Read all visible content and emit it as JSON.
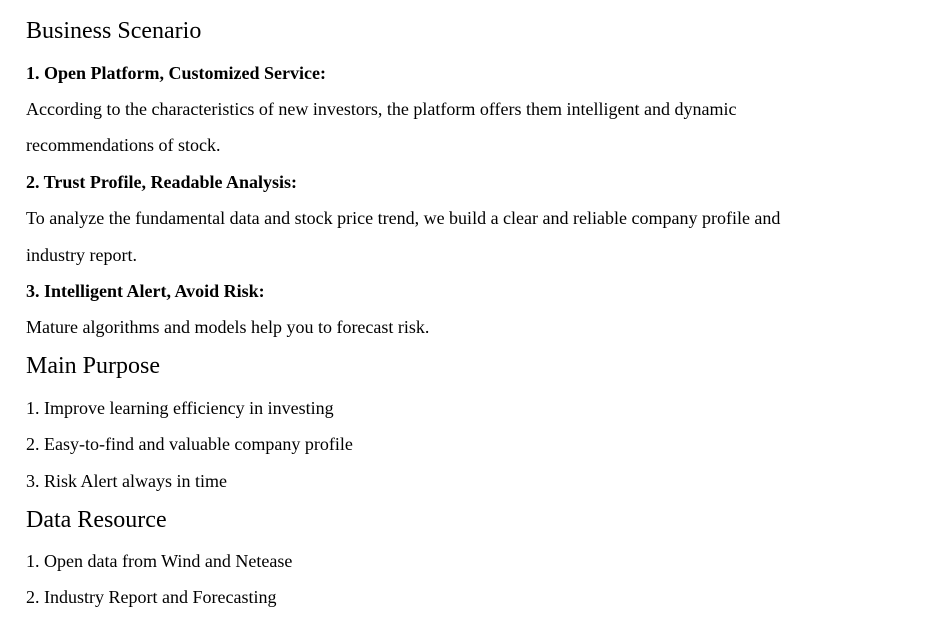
{
  "sections": [
    {
      "title": "Business Scenario",
      "items": [
        {
          "heading": "1. Open Platform, Customized Service:",
          "lines": [
            "According to the characteristics of new investors, the platform offers them intelligent and dynamic",
            "recommendations of stock."
          ]
        },
        {
          "heading": "2. Trust Profile, Readable Analysis:",
          "lines": [
            "To analyze the fundamental data and stock price trend, we build a clear and reliable company profile and",
            "industry report."
          ]
        },
        {
          "heading": "3. Intelligent Alert, Avoid Risk:",
          "lines": [
            "Mature algorithms and models help you to forecast risk."
          ]
        }
      ]
    },
    {
      "title": "Main Purpose",
      "lines": [
        "1. Improve learning efficiency in investing",
        "2. Easy-to-find and valuable company profile",
        "3. Risk Alert always in time"
      ]
    },
    {
      "title": "Data Resource",
      "lines": [
        "1. Open data from Wind and Netease",
        "2. Industry Report and Forecasting"
      ]
    }
  ]
}
